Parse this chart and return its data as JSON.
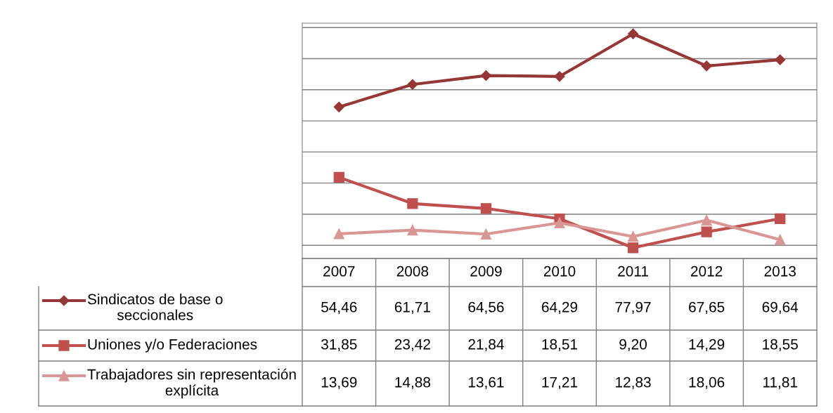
{
  "chart_data": {
    "type": "line",
    "categories": [
      "2007",
      "2008",
      "2009",
      "2010",
      "2011",
      "2012",
      "2013"
    ],
    "series": [
      {
        "name": "Sindicatos de base o seccionales",
        "color": "#953735",
        "marker": "diamond",
        "values": [
          54.46,
          61.71,
          64.56,
          64.29,
          77.97,
          67.65,
          69.64
        ],
        "value_labels": [
          "54,46",
          "61,71",
          "64,56",
          "64,29",
          "77,97",
          "67,65",
          "69,64"
        ]
      },
      {
        "name": "Uniones y/o Federaciones",
        "color": "#c0504d",
        "marker": "square",
        "values": [
          31.85,
          23.42,
          21.84,
          18.51,
          9.2,
          14.29,
          18.55
        ],
        "value_labels": [
          "31,85",
          "23,42",
          "21,84",
          "18,51",
          "9,20",
          "14,29",
          "18,55"
        ]
      },
      {
        "name": "Trabajadores sin representación explícita",
        "color": "#d99694",
        "marker": "triangle",
        "values": [
          13.69,
          14.88,
          13.61,
          17.21,
          12.83,
          18.06,
          11.81
        ],
        "value_labels": [
          "13,69",
          "14,88",
          "13,61",
          "17,21",
          "12,83",
          "18,06",
          "11,81"
        ]
      }
    ],
    "grid": "y",
    "tick_labels": false,
    "legend": "bottom left",
    "line_style": "solid"
  }
}
